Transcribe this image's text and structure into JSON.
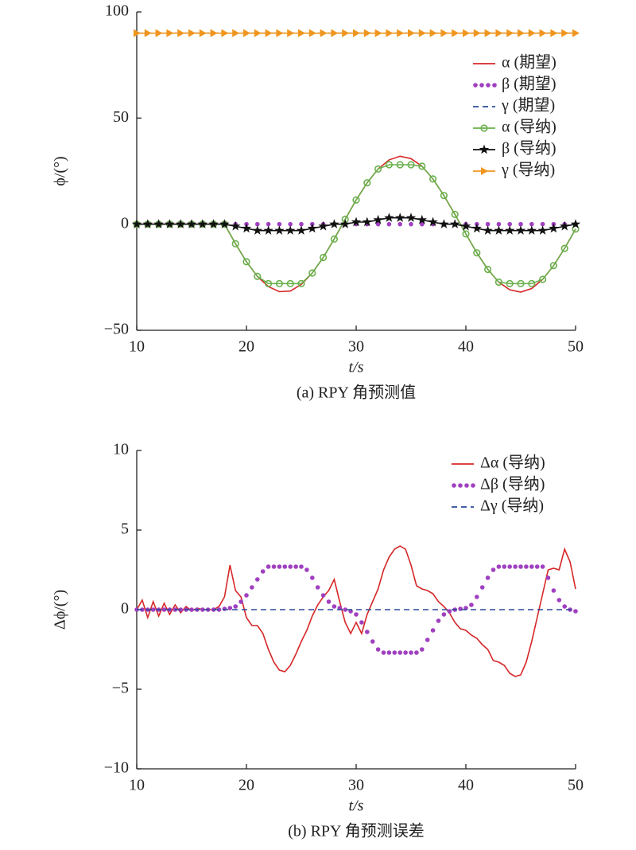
{
  "chart_data": [
    {
      "type": "line",
      "caption": "(a) RPY 角预测值",
      "xlabel": "t/s",
      "ylabel": "ϕ/(°)",
      "xlim": [
        10,
        50
      ],
      "xticks": [
        10,
        20,
        30,
        40,
        50
      ],
      "ylim": [
        -50,
        100
      ],
      "yticks": [
        {
          "value": -50,
          "label": "−50"
        },
        0,
        50,
        100
      ],
      "legend": "upper right",
      "x": [
        10,
        11,
        12,
        13,
        14,
        15,
        16,
        17,
        18,
        19,
        20,
        21,
        22,
        23,
        24,
        25,
        26,
        27,
        28,
        29,
        30,
        31,
        32,
        33,
        34,
        35,
        36,
        37,
        38,
        39,
        40,
        41,
        42,
        43,
        44,
        45,
        46,
        47,
        48,
        49,
        50
      ],
      "series": [
        {
          "name": "α (期望)",
          "color": "#d62728",
          "line": "solid",
          "marker": "none",
          "values": [
            0,
            0,
            0,
            0,
            0,
            0,
            0,
            0,
            0,
            -9.2,
            -17.7,
            -24.6,
            -29.4,
            -31.8,
            -31.5,
            -28.4,
            -23.0,
            -15.7,
            -7.0,
            2.3,
            11.4,
            19.5,
            26.0,
            30.3,
            32.0,
            30.9,
            27.3,
            21.3,
            13.5,
            4.6,
            -4.6,
            -13.5,
            -21.3,
            -27.3,
            -30.9,
            -32.0,
            -30.3,
            -26.0,
            -19.5,
            -11.4,
            -2.3
          ]
        },
        {
          "name": "β (期望)",
          "color": "#a040c0",
          "line": "none",
          "marker": "dot",
          "values": [
            0,
            0,
            0,
            0,
            0,
            0,
            0,
            0,
            0,
            0,
            0,
            0,
            0,
            0,
            0,
            0,
            0,
            0,
            0,
            0,
            0,
            0,
            0,
            0,
            0,
            0,
            0,
            0,
            0,
            0,
            0,
            0,
            0,
            0,
            0,
            0,
            0,
            0,
            0,
            0,
            0
          ]
        },
        {
          "name": "γ (期望)",
          "color": "#2a4a9a",
          "line": "dashed",
          "marker": "none",
          "x": [
            10,
            50
          ],
          "values": [
            90,
            90
          ]
        },
        {
          "name": "α (导纳)",
          "color": "#6ab04c",
          "line": "solid",
          "marker": "circle",
          "values": [
            0,
            0,
            0,
            0,
            0,
            0,
            0,
            0,
            0,
            -9.2,
            -17.7,
            -24.6,
            -28,
            -28,
            -28,
            -28,
            -23.0,
            -15.7,
            -7.0,
            2.3,
            11.4,
            19.5,
            26.0,
            28,
            28,
            28,
            27.3,
            21.3,
            13.5,
            4.6,
            -4.6,
            -13.5,
            -21.3,
            -27.3,
            -28,
            -28,
            -28,
            -26.0,
            -19.5,
            -11.4,
            -2.3
          ]
        },
        {
          "name": "β (导纳)",
          "color": "#111111",
          "line": "solid",
          "marker": "star",
          "values": [
            0,
            0,
            0,
            0,
            0,
            0,
            0,
            0,
            0,
            -1,
            -2,
            -3,
            -3,
            -3,
            -3,
            -3,
            -2,
            -1,
            0,
            0,
            1,
            1,
            2,
            3,
            3,
            3,
            2,
            1,
            0,
            0,
            -1,
            -2,
            -3,
            -3,
            -3,
            -3,
            -3,
            -3,
            -2,
            -1,
            0
          ]
        },
        {
          "name": "γ (导纳)",
          "color": "#f0961e",
          "line": "solid",
          "marker": "triangle",
          "values": [
            90,
            90,
            90,
            90,
            90,
            90,
            90,
            90,
            90,
            90,
            90,
            90,
            90,
            90,
            90,
            90,
            90,
            90,
            90,
            90,
            90,
            90,
            90,
            90,
            90,
            90,
            90,
            90,
            90,
            90,
            90,
            90,
            90,
            90,
            90,
            90,
            90,
            90,
            90,
            90,
            90
          ]
        }
      ]
    },
    {
      "type": "line",
      "caption": "(b) RPY 角预测误差",
      "xlabel": "t/s",
      "ylabel": "Δϕ/(°)",
      "xlim": [
        10,
        50
      ],
      "xticks": [
        10,
        20,
        30,
        40,
        50
      ],
      "ylim": [
        -10,
        10
      ],
      "yticks": [
        {
          "value": -10,
          "label": "−10"
        },
        {
          "value": -5,
          "label": "−5"
        },
        0,
        5,
        10
      ],
      "legend": "upper right",
      "x": [
        10,
        10.5,
        11,
        11.5,
        12,
        12.5,
        13,
        13.5,
        14,
        14.5,
        15,
        15.5,
        16,
        16.5,
        17,
        17.5,
        18,
        18.5,
        19,
        19.5,
        20,
        20.5,
        21,
        21.5,
        22,
        22.5,
        23,
        23.5,
        24,
        24.5,
        25,
        25.5,
        26,
        26.5,
        27,
        27.5,
        28,
        28.5,
        29,
        29.5,
        30,
        30.5,
        31,
        31.5,
        32,
        32.5,
        33,
        33.5,
        34,
        34.5,
        35,
        35.5,
        36,
        36.5,
        37,
        37.5,
        38,
        38.5,
        39,
        39.5,
        40,
        40.5,
        41,
        41.5,
        42,
        42.5,
        43,
        43.5,
        44,
        44.5,
        45,
        45.5,
        46,
        46.5,
        47,
        47.5,
        48,
        48.5,
        49,
        49.5,
        50
      ],
      "series": [
        {
          "name": "Δα (导纳)",
          "color": "#d62728",
          "line": "solid",
          "marker": "none",
          "values": [
            0,
            0.6,
            -0.5,
            0.5,
            -0.4,
            0.4,
            -0.3,
            0.3,
            -0.2,
            0.2,
            -0.1,
            0.1,
            0,
            0,
            0,
            0.2,
            0.8,
            2.8,
            1.2,
            0.8,
            -0.5,
            -1.0,
            -1.0,
            -1.5,
            -2.5,
            -3.3,
            -3.8,
            -3.9,
            -3.5,
            -2.8,
            -2.0,
            -1.3,
            -0.4,
            0.3,
            0.8,
            1.2,
            1.9,
            0.5,
            -0.8,
            -1.5,
            -0.8,
            -1.5,
            -0.3,
            0.5,
            1.3,
            2.5,
            3.3,
            3.8,
            4.0,
            3.8,
            2.8,
            1.5,
            1.3,
            1.2,
            1.0,
            0.5,
            0.2,
            -0.2,
            -0.8,
            -1.2,
            -1.3,
            -1.6,
            -1.8,
            -2.2,
            -2.5,
            -3.2,
            -3.3,
            -3.5,
            -4.0,
            -4.2,
            -4.1,
            -3.3,
            -2.0,
            -0.5,
            1.0,
            2.5,
            2.6,
            2.5,
            3.8,
            3.0,
            1.3
          ]
        },
        {
          "name": "Δβ (导纳)",
          "color": "#a040c0",
          "line": "none",
          "marker": "dot",
          "values": [
            0,
            0,
            0,
            0,
            0,
            0,
            0,
            0,
            0,
            0,
            0,
            0,
            0,
            0,
            0,
            0,
            0.05,
            0.1,
            0.2,
            0.5,
            0.9,
            1.4,
            1.9,
            2.4,
            2.7,
            2.7,
            2.7,
            2.7,
            2.7,
            2.7,
            2.7,
            2.5,
            2.0,
            1.4,
            0.9,
            0.5,
            0.2,
            0.1,
            0,
            -0.1,
            -0.3,
            -0.8,
            -1.4,
            -2.0,
            -2.5,
            -2.7,
            -2.7,
            -2.7,
            -2.7,
            -2.7,
            -2.7,
            -2.7,
            -2.5,
            -1.9,
            -1.3,
            -0.7,
            -0.3,
            -0.1,
            0,
            0.05,
            0.1,
            0.3,
            0.8,
            1.4,
            2.0,
            2.5,
            2.7,
            2.7,
            2.7,
            2.7,
            2.7,
            2.7,
            2.7,
            2.7,
            2.7,
            2.0,
            1.2,
            0.6,
            0.2,
            0,
            -0.1
          ]
        },
        {
          "name": "Δγ (导纳)",
          "color": "#2a4a9a",
          "line": "dashed",
          "marker": "none",
          "x": [
            10,
            50
          ],
          "values": [
            0,
            0
          ]
        }
      ]
    }
  ]
}
